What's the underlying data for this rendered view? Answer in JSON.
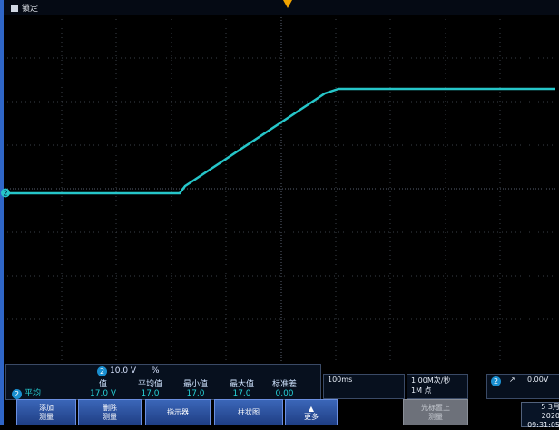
{
  "status_bar": {
    "label": "锁定"
  },
  "measurements": {
    "channel_scale": "10.0 V",
    "scale_suffix": "%",
    "row_label": "平均",
    "columns": [
      {
        "header": "值",
        "value": "17.0 V"
      },
      {
        "header": "平均值",
        "value": "17.0"
      },
      {
        "header": "最小值",
        "value": "17.0"
      },
      {
        "header": "最大值",
        "value": "17.0"
      },
      {
        "header": "标准差",
        "value": "0.00"
      }
    ]
  },
  "timebase": {
    "scale": "100ms"
  },
  "acquisition": {
    "rate": "1.00M次/秒",
    "points": "1M 点"
  },
  "trigger": {
    "channel": "2",
    "slope_symbol": "↗",
    "level": "0.00V"
  },
  "softkeys": [
    {
      "label": "添加\n测量",
      "enabled": true
    },
    {
      "label": "删除\n测量",
      "enabled": true
    },
    {
      "label": "指示器",
      "enabled": true
    },
    {
      "label": "柱状图",
      "enabled": true
    },
    {
      "label": "更多",
      "enabled": true
    },
    {
      "label": "光标置上\n测量",
      "enabled": false
    }
  ],
  "datetime": {
    "date": "5 3月 2020",
    "time": "09:31:05"
  },
  "colors": {
    "trace": "#26c6c9",
    "grid": "#3a3f47",
    "accent": "#1a8fd0"
  }
}
